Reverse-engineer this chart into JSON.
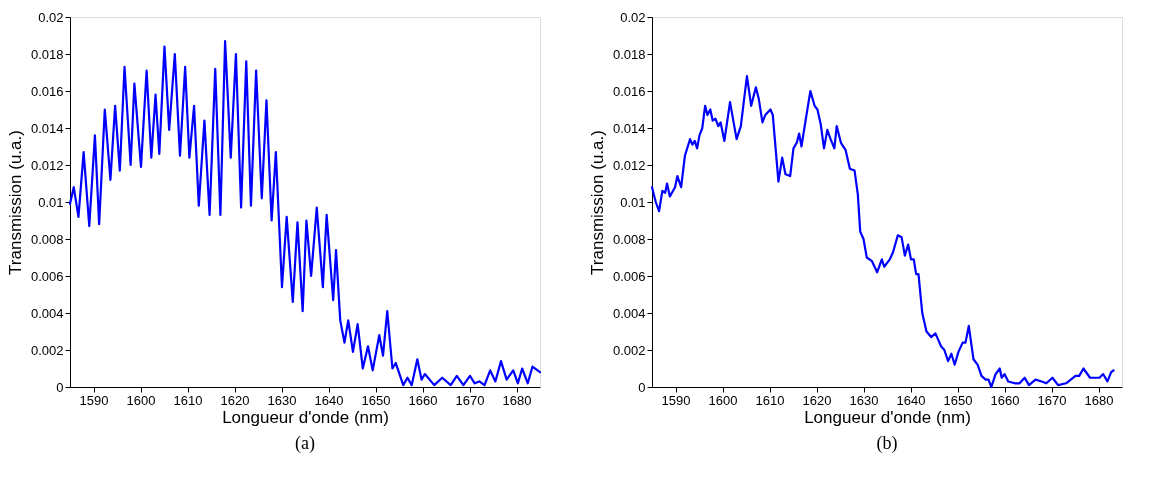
{
  "chart_data": [
    {
      "type": "line",
      "xlabel": "Longueur d'onde (nm)",
      "ylabel": "Transmission (u.a.)",
      "annotations": [
        "(a)"
      ],
      "xlim": [
        1585,
        1685
      ],
      "ylim": [
        0,
        0.02
      ],
      "xticks": [
        1590,
        1600,
        1610,
        1620,
        1630,
        1640,
        1650,
        1660,
        1670,
        1680
      ],
      "yticks": [
        0,
        0.002,
        0.004,
        0.006,
        0.008,
        0.01,
        0.012,
        0.014,
        0.016,
        0.018,
        0.02
      ],
      "grid": false,
      "legend": false,
      "marker": "none",
      "line_style": "solid",
      "series": [
        {
          "color": "#0000ff",
          "x": [
            1585,
            1585.8,
            1586.8,
            1587.9,
            1589.1,
            1590.3,
            1591.2,
            1592.4,
            1593.6,
            1594.6,
            1595.6,
            1596.6,
            1597.9,
            1598.7,
            1600.1,
            1601.3,
            1602.3,
            1603.2,
            1604.0,
            1605.1,
            1606.1,
            1607.3,
            1608.4,
            1609.5,
            1610.4,
            1611.4,
            1612.4,
            1613.6,
            1614.7,
            1615.9,
            1617.0,
            1618.0,
            1619.2,
            1620.3,
            1621.4,
            1622.5,
            1623.5,
            1624.6,
            1625.8,
            1626.8,
            1627.9,
            1628.8,
            1630.1,
            1631.1,
            1632.4,
            1633.4,
            1634.5,
            1635.3,
            1636.3,
            1637.5,
            1638.8,
            1639.6,
            1641.0,
            1641.6,
            1642.5,
            1643.4,
            1644.2,
            1645.2,
            1646.2,
            1647.3,
            1648.4,
            1649.4,
            1650.8,
            1651.6,
            1652.5,
            1653.6,
            1654.3,
            1655.9,
            1656.8,
            1657.7,
            1658.9,
            1659.8,
            1660.5,
            1662.5,
            1664.2,
            1666.0,
            1667.3,
            1668.7,
            1670.1,
            1671.1,
            1672.1,
            1673.2,
            1674.4,
            1675.5,
            1676.7,
            1677.9,
            1679.3,
            1680.3,
            1681.2,
            1682.4,
            1683.4,
            1685
          ],
          "values": [
            0.0099,
            0.0108,
            0.0092,
            0.0127,
            0.0087,
            0.0136,
            0.0088,
            0.015,
            0.0112,
            0.0152,
            0.0117,
            0.0173,
            0.012,
            0.0164,
            0.0119,
            0.0171,
            0.0124,
            0.0158,
            0.0126,
            0.0184,
            0.0139,
            0.018,
            0.0125,
            0.0173,
            0.0124,
            0.0152,
            0.0098,
            0.0144,
            0.0093,
            0.0172,
            0.0093,
            0.0187,
            0.0124,
            0.018,
            0.0097,
            0.0176,
            0.0098,
            0.0171,
            0.0102,
            0.0155,
            0.009,
            0.0127,
            0.0054,
            0.0092,
            0.0046,
            0.0089,
            0.0041,
            0.009,
            0.006,
            0.0097,
            0.0054,
            0.0093,
            0.0047,
            0.0074,
            0.0036,
            0.0024,
            0.0036,
            0.0019,
            0.0034,
            0.001,
            0.0022,
            0.0009,
            0.0028,
            0.0017,
            0.0041,
            0.001,
            0.0013,
            0.0001,
            0.0005,
            0.0001,
            0.0015,
            0.0004,
            0.0007,
            0.0001,
            0.0005,
            0.0001,
            0.0006,
            0.0001,
            0.0006,
            0.0002,
            0.0003,
            0.0001,
            0.0009,
            0.0003,
            0.0014,
            0.0004,
            0.0009,
            0.0002,
            0.001,
            0.0002,
            0.0011,
            0.0008
          ]
        }
      ]
    },
    {
      "type": "line",
      "xlabel": "Longueur d'onde (nm)",
      "ylabel": "Transmission (u.a.)",
      "annotations": [
        "(b)"
      ],
      "xlim": [
        1585,
        1685
      ],
      "ylim": [
        0,
        0.02
      ],
      "xticks": [
        1590,
        1600,
        1610,
        1620,
        1630,
        1640,
        1650,
        1660,
        1670,
        1680
      ],
      "yticks": [
        0,
        0.002,
        0.004,
        0.006,
        0.008,
        0.01,
        0.012,
        0.014,
        0.016,
        0.018,
        0.02
      ],
      "grid": false,
      "legend": false,
      "marker": "none",
      "line_style": "solid",
      "series": [
        {
          "color": "#0000ff",
          "x": [
            1585,
            1585.8,
            1586.5,
            1587.2,
            1587.8,
            1588.2,
            1588.8,
            1589.9,
            1590.4,
            1591.2,
            1592.0,
            1593.1,
            1593.6,
            1594.1,
            1594.6,
            1595.1,
            1595.7,
            1596.3,
            1596.8,
            1597.4,
            1597.9,
            1598.5,
            1599.1,
            1599.6,
            1600.4,
            1601.6,
            1603.0,
            1603.9,
            1605.2,
            1606.1,
            1607.1,
            1607.7,
            1608.5,
            1609.1,
            1610.2,
            1610.7,
            1611.9,
            1612.7,
            1613.4,
            1614.4,
            1615.1,
            1615.8,
            1616.3,
            1616.8,
            1617.8,
            1618.7,
            1619.6,
            1620.2,
            1620.9,
            1621.6,
            1622.3,
            1623.0,
            1623.8,
            1624.3,
            1625.2,
            1626.2,
            1627.1,
            1628.1,
            1628.8,
            1629.3,
            1630.0,
            1630.7,
            1631.8,
            1632.9,
            1633.9,
            1634.4,
            1635.6,
            1636.3,
            1637.3,
            1638.1,
            1638.8,
            1639.5,
            1640.1,
            1640.7,
            1641.2,
            1641.7,
            1642.5,
            1643.4,
            1644.4,
            1645.3,
            1646.5,
            1647.2,
            1648.0,
            1648.7,
            1649.4,
            1650.2,
            1651.1,
            1651.7,
            1652.4,
            1653.4,
            1654.3,
            1655.1,
            1656.0,
            1656.6,
            1657.2,
            1658.1,
            1659.0,
            1659.4,
            1660.0,
            1660.8,
            1662.2,
            1663.2,
            1664.3,
            1665.2,
            1666.6,
            1667.9,
            1668.9,
            1670.2,
            1671.4,
            1673.1,
            1675.1,
            1675.9,
            1676.8,
            1678.2,
            1680.2,
            1681.0,
            1681.9,
            1682.7,
            1683.2
          ],
          "values": [
            0.0108,
            0.01,
            0.0095,
            0.0106,
            0.0105,
            0.011,
            0.0103,
            0.0108,
            0.0114,
            0.0108,
            0.0125,
            0.0134,
            0.0131,
            0.0133,
            0.0129,
            0.0136,
            0.014,
            0.0152,
            0.0147,
            0.015,
            0.0144,
            0.0145,
            0.0141,
            0.0143,
            0.0133,
            0.0154,
            0.0134,
            0.0141,
            0.0168,
            0.0152,
            0.0162,
            0.0156,
            0.0143,
            0.0147,
            0.015,
            0.0147,
            0.0111,
            0.0124,
            0.0115,
            0.0114,
            0.0129,
            0.0132,
            0.0137,
            0.013,
            0.0146,
            0.016,
            0.0152,
            0.015,
            0.0142,
            0.0129,
            0.0139,
            0.0134,
            0.0129,
            0.0141,
            0.0132,
            0.0128,
            0.0118,
            0.0117,
            0.0104,
            0.0084,
            0.008,
            0.007,
            0.0068,
            0.0062,
            0.0069,
            0.0065,
            0.0069,
            0.0073,
            0.0082,
            0.0081,
            0.0071,
            0.0077,
            0.0069,
            0.0069,
            0.0061,
            0.0061,
            0.004,
            0.003,
            0.0027,
            0.0029,
            0.0022,
            0.002,
            0.0014,
            0.0018,
            0.0012,
            0.0019,
            0.0024,
            0.0024,
            0.0033,
            0.0015,
            0.0012,
            0.0006,
            0.0004,
            0.0004,
            0.0,
            0.0007,
            0.001,
            0.0005,
            0.0007,
            0.0003,
            0.0002,
            0.0002,
            0.0005,
            0.0001,
            0.0004,
            0.0003,
            0.0002,
            0.0005,
            0.0001,
            0.0002,
            0.0006,
            0.0006,
            0.001,
            0.0005,
            0.0005,
            0.0007,
            0.0003,
            0.0008,
            0.0009
          ]
        }
      ]
    }
  ]
}
